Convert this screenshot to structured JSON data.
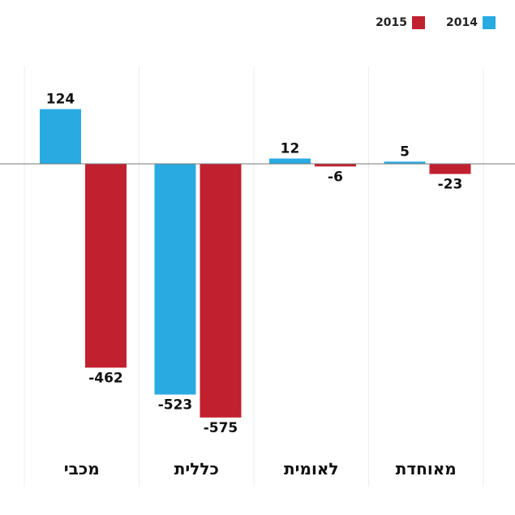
{
  "chart_data": {
    "type": "bar",
    "title": "",
    "xlabel": "",
    "ylabel": "",
    "categories": [
      "מכבי",
      "כללית",
      "לאומית",
      "מאוחדת"
    ],
    "series": [
      {
        "name": "2014",
        "color": "#29abe2",
        "values": [
          124,
          -523,
          12,
          5
        ]
      },
      {
        "name": "2015",
        "color": "#c1202f",
        "values": [
          -462,
          -575,
          -6,
          -23
        ]
      }
    ],
    "value_labels": [
      [
        "124",
        "-523",
        "12",
        "5"
      ],
      [
        "-462",
        "-575",
        "-6",
        "-23"
      ]
    ],
    "ylim": [
      -575,
      124
    ],
    "legend_position": "top-right",
    "grid": false
  },
  "legend": {
    "items": [
      {
        "label": "2014",
        "color": "#29abe2"
      },
      {
        "label": "2015",
        "color": "#c1202f"
      }
    ]
  }
}
